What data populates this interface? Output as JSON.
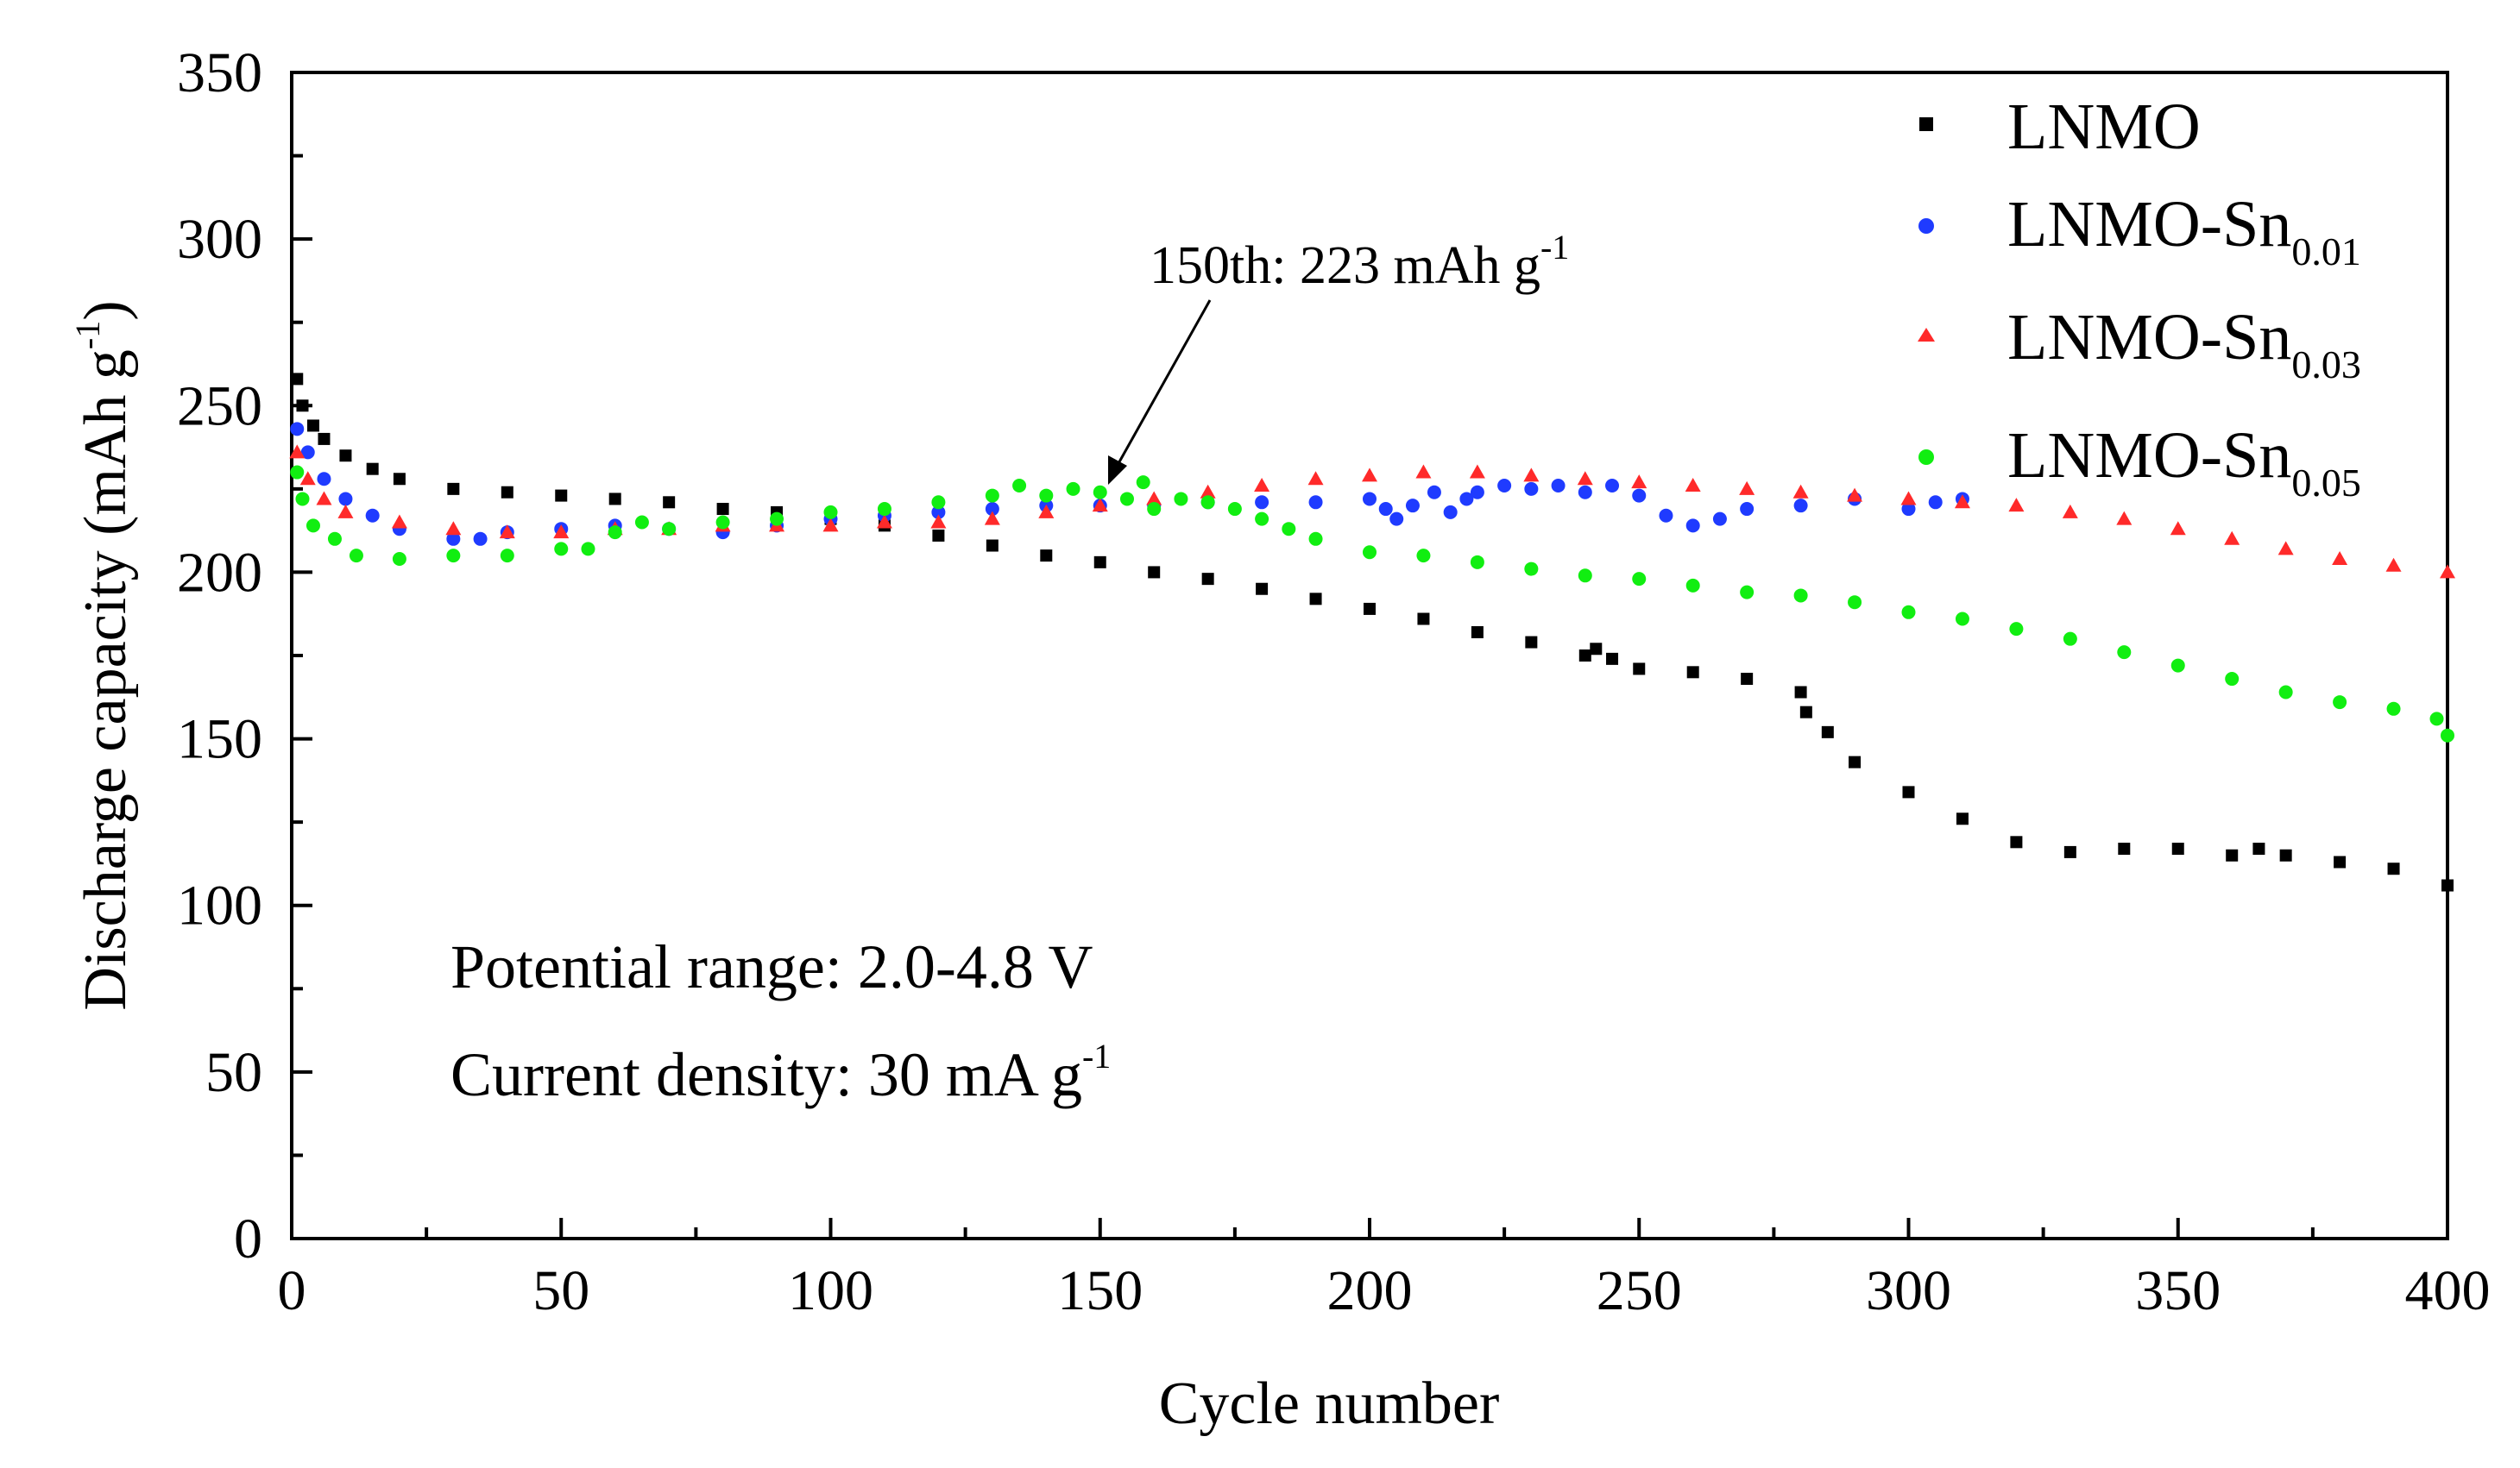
{
  "chart_data": {
    "type": "scatter",
    "title": "",
    "xlabel": "Cycle number",
    "ylabel": "Discharge capacity (mAh g",
    "ylabel_sup": "-1",
    "ylabel_close": ")",
    "xlim": [
      0,
      400
    ],
    "ylim": [
      0,
      350
    ],
    "xticks": [
      0,
      50,
      100,
      150,
      200,
      250,
      300,
      350,
      400
    ],
    "yticks": [
      0,
      50,
      100,
      150,
      200,
      250,
      300,
      350
    ],
    "grid": false,
    "legend_position": "top-right",
    "legend": [
      {
        "text": "LNMO",
        "sub": ""
      },
      {
        "text": "LNMO-Sn",
        "sub": "0.01"
      },
      {
        "text": "LNMO-Sn",
        "sub": "0.03"
      },
      {
        "text": "LNMO-Sn",
        "sub": "0.05"
      }
    ],
    "annotation": {
      "text": "150th: 223 mAh g",
      "sup": "-1",
      "x": 152,
      "y": 223
    },
    "notes": [
      {
        "text": "Potential range: 2.0-4.8 V",
        "sup": ""
      },
      {
        "text": "Current density: 30 mA g",
        "sup": "-1"
      }
    ],
    "series": [
      {
        "name": "LNMO",
        "color": "#000000",
        "marker": "square",
        "points": [
          [
            1,
            258
          ],
          [
            2,
            250
          ],
          [
            4,
            244
          ],
          [
            6,
            240
          ],
          [
            10,
            235
          ],
          [
            15,
            231
          ],
          [
            20,
            228
          ],
          [
            30,
            225
          ],
          [
            40,
            224
          ],
          [
            50,
            223
          ],
          [
            60,
            222
          ],
          [
            70,
            221
          ],
          [
            80,
            219
          ],
          [
            90,
            218
          ],
          [
            100,
            216
          ],
          [
            110,
            214
          ],
          [
            120,
            211
          ],
          [
            130,
            208
          ],
          [
            140,
            205
          ],
          [
            150,
            203
          ],
          [
            160,
            200
          ],
          [
            170,
            198
          ],
          [
            180,
            195
          ],
          [
            190,
            192
          ],
          [
            200,
            189
          ],
          [
            210,
            186
          ],
          [
            220,
            182
          ],
          [
            230,
            179
          ],
          [
            240,
            175
          ],
          [
            242,
            177
          ],
          [
            245,
            174
          ],
          [
            250,
            171
          ],
          [
            260,
            170
          ],
          [
            270,
            168
          ],
          [
            280,
            164
          ],
          [
            281,
            158
          ],
          [
            285,
            152
          ],
          [
            290,
            143
          ],
          [
            300,
            134
          ],
          [
            310,
            126
          ],
          [
            320,
            119
          ],
          [
            330,
            116
          ],
          [
            340,
            117
          ],
          [
            350,
            117
          ],
          [
            360,
            115
          ],
          [
            365,
            117
          ],
          [
            370,
            115
          ],
          [
            380,
            113
          ],
          [
            390,
            111
          ],
          [
            400,
            106
          ]
        ]
      },
      {
        "name": "LNMO-Sn0.01",
        "color": "#1f3bff",
        "marker": "circle",
        "points": [
          [
            1,
            243
          ],
          [
            3,
            236
          ],
          [
            6,
            228
          ],
          [
            10,
            222
          ],
          [
            15,
            217
          ],
          [
            20,
            213
          ],
          [
            30,
            210
          ],
          [
            35,
            210
          ],
          [
            40,
            212
          ],
          [
            50,
            213
          ],
          [
            60,
            214
          ],
          [
            70,
            213
          ],
          [
            80,
            212
          ],
          [
            90,
            214
          ],
          [
            100,
            216
          ],
          [
            110,
            217
          ],
          [
            120,
            218
          ],
          [
            130,
            219
          ],
          [
            140,
            220
          ],
          [
            150,
            220
          ],
          [
            160,
            220
          ],
          [
            170,
            221
          ],
          [
            180,
            221
          ],
          [
            190,
            221
          ],
          [
            200,
            222
          ],
          [
            203,
            219
          ],
          [
            205,
            216
          ],
          [
            208,
            220
          ],
          [
            212,
            224
          ],
          [
            215,
            218
          ],
          [
            218,
            222
          ],
          [
            220,
            224
          ],
          [
            225,
            226
          ],
          [
            230,
            225
          ],
          [
            235,
            226
          ],
          [
            240,
            224
          ],
          [
            245,
            226
          ],
          [
            250,
            223
          ],
          [
            255,
            217
          ],
          [
            260,
            214
          ],
          [
            265,
            216
          ],
          [
            270,
            219
          ],
          [
            280,
            220
          ],
          [
            290,
            222
          ],
          [
            300,
            219
          ],
          [
            305,
            221
          ],
          [
            310,
            222
          ]
        ]
      },
      {
        "name": "LNMO-Sn0.03",
        "color": "#ff2a2a",
        "marker": "triangle",
        "points": [
          [
            1,
            236
          ],
          [
            3,
            228
          ],
          [
            6,
            222
          ],
          [
            10,
            218
          ],
          [
            20,
            215
          ],
          [
            30,
            213
          ],
          [
            40,
            212
          ],
          [
            50,
            212
          ],
          [
            60,
            213
          ],
          [
            70,
            213
          ],
          [
            80,
            214
          ],
          [
            90,
            214
          ],
          [
            100,
            214
          ],
          [
            110,
            215
          ],
          [
            120,
            215
          ],
          [
            130,
            216
          ],
          [
            140,
            218
          ],
          [
            150,
            220
          ],
          [
            160,
            222
          ],
          [
            170,
            224
          ],
          [
            180,
            226
          ],
          [
            190,
            228
          ],
          [
            200,
            229
          ],
          [
            210,
            230
          ],
          [
            220,
            230
          ],
          [
            230,
            229
          ],
          [
            240,
            228
          ],
          [
            250,
            227
          ],
          [
            260,
            226
          ],
          [
            270,
            225
          ],
          [
            280,
            224
          ],
          [
            290,
            223
          ],
          [
            300,
            222
          ],
          [
            310,
            221
          ],
          [
            320,
            220
          ],
          [
            330,
            218
          ],
          [
            340,
            216
          ],
          [
            350,
            213
          ],
          [
            360,
            210
          ],
          [
            370,
            207
          ],
          [
            380,
            204
          ],
          [
            390,
            202
          ],
          [
            400,
            200
          ]
        ]
      },
      {
        "name": "LNMO-Sn0.05",
        "color": "#11ee11",
        "marker": "circle",
        "points": [
          [
            1,
            230
          ],
          [
            2,
            222
          ],
          [
            4,
            214
          ],
          [
            8,
            210
          ],
          [
            12,
            205
          ],
          [
            20,
            204
          ],
          [
            30,
            205
          ],
          [
            40,
            205
          ],
          [
            50,
            207
          ],
          [
            55,
            207
          ],
          [
            60,
            212
          ],
          [
            65,
            215
          ],
          [
            70,
            213
          ],
          [
            80,
            215
          ],
          [
            90,
            216
          ],
          [
            100,
            218
          ],
          [
            110,
            219
          ],
          [
            120,
            221
          ],
          [
            130,
            223
          ],
          [
            135,
            226
          ],
          [
            140,
            223
          ],
          [
            145,
            225
          ],
          [
            150,
            224
          ],
          [
            155,
            222
          ],
          [
            158,
            227
          ],
          [
            160,
            219
          ],
          [
            165,
            222
          ],
          [
            170,
            221
          ],
          [
            175,
            219
          ],
          [
            180,
            216
          ],
          [
            185,
            213
          ],
          [
            190,
            210
          ],
          [
            200,
            206
          ],
          [
            210,
            205
          ],
          [
            220,
            203
          ],
          [
            230,
            201
          ],
          [
            240,
            199
          ],
          [
            250,
            198
          ],
          [
            260,
            196
          ],
          [
            270,
            194
          ],
          [
            280,
            193
          ],
          [
            290,
            191
          ],
          [
            300,
            188
          ],
          [
            310,
            186
          ],
          [
            320,
            183
          ],
          [
            330,
            180
          ],
          [
            340,
            176
          ],
          [
            350,
            172
          ],
          [
            360,
            168
          ],
          [
            370,
            164
          ],
          [
            380,
            161
          ],
          [
            390,
            159
          ],
          [
            398,
            156
          ],
          [
            400,
            151
          ]
        ]
      }
    ]
  }
}
